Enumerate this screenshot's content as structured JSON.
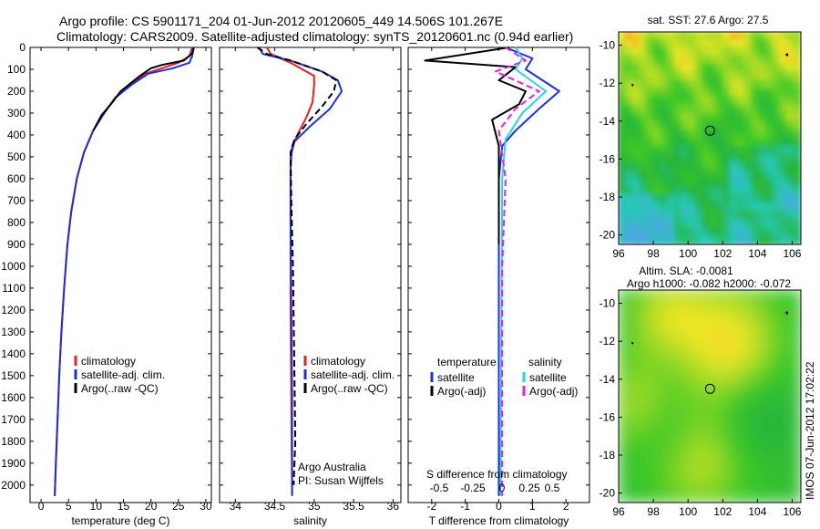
{
  "header": {
    "line1": "Argo profile: CS 5901171_204 01-Jun-2012 20120605_449 14.506S 101.267E",
    "line2": "Climatology: CARS2009. Satellite-adjusted climatology: synTS_20120601.nc (0.94d earlier)"
  },
  "sidebar_text": "IMOS 07-Jun-2012 17:02:22",
  "colors": {
    "climatology": "#e8201a",
    "satellite": "#1b2fe0",
    "argo": "#000000",
    "satellite_s": "#22d6e8",
    "argo_s": "#e61ee6"
  },
  "chart_data": [
    {
      "type": "line",
      "name": "temperature",
      "xlabel": "temperature (deg C)",
      "xlim": [
        -2,
        31
      ],
      "xticks": [
        0,
        5,
        10,
        15,
        20,
        25,
        30
      ],
      "ylim": [
        0,
        2080
      ],
      "yticks": [
        0,
        100,
        200,
        300,
        400,
        500,
        600,
        700,
        800,
        900,
        1000,
        1100,
        1200,
        1300,
        1400,
        1500,
        1600,
        1700,
        1800,
        1900,
        2000
      ],
      "legend": {
        "location": "lower-middle",
        "entries": [
          "climatology",
          "satellite-adj. clim.",
          "Argo(..raw -QC)"
        ]
      },
      "series": [
        {
          "name": "climatology",
          "color": "#e8201a",
          "style": "solid",
          "points": [
            [
              27.5,
              0
            ],
            [
              27,
              40
            ],
            [
              25,
              70
            ],
            [
              22,
              95
            ],
            [
              19,
              120
            ],
            [
              16,
              170
            ],
            [
              13.5,
              230
            ],
            [
              11.5,
              300
            ],
            [
              9.5,
              380
            ],
            [
              7.8,
              480
            ],
            [
              6.5,
              600
            ],
            [
              5.5,
              750
            ],
            [
              4.8,
              900
            ],
            [
              4.2,
              1100
            ],
            [
              3.7,
              1300
            ],
            [
              3.3,
              1500
            ],
            [
              3,
              1700
            ],
            [
              2.7,
              1900
            ],
            [
              2.5,
              2050
            ]
          ]
        },
        {
          "name": "satellite-adj. clim.",
          "color": "#1b2fe0",
          "style": "solid",
          "points": [
            [
              27.7,
              0
            ],
            [
              27.5,
              40
            ],
            [
              27,
              70
            ],
            [
              24,
              95
            ],
            [
              19.5,
              120
            ],
            [
              16.5,
              170
            ],
            [
              13.5,
              230
            ],
            [
              11.5,
              300
            ],
            [
              9.5,
              380
            ],
            [
              7.8,
              480
            ],
            [
              6.5,
              600
            ],
            [
              5.5,
              750
            ],
            [
              4.8,
              900
            ],
            [
              4.2,
              1100
            ],
            [
              3.7,
              1300
            ],
            [
              3.3,
              1500
            ],
            [
              3,
              1700
            ],
            [
              2.7,
              1900
            ],
            [
              2.5,
              2050
            ]
          ]
        },
        {
          "name": "Argo(..raw -QC)",
          "color": "#000000",
          "style": "solid",
          "points": [
            [
              27.8,
              0
            ],
            [
              27.6,
              25
            ],
            [
              26,
              60
            ],
            [
              22,
              80
            ],
            [
              20,
              95
            ],
            [
              18,
              130
            ],
            [
              16,
              170
            ],
            [
              14.5,
              200
            ],
            [
              13,
              250
            ],
            [
              11,
              310
            ],
            [
              9.5,
              380
            ]
          ]
        }
      ]
    },
    {
      "type": "line",
      "name": "salinity",
      "xlabel": "salinity",
      "xlim": [
        33.8,
        36.1
      ],
      "xticks": [
        34,
        34.5,
        35,
        35.5,
        36
      ],
      "ylim": [
        0,
        2080
      ],
      "legend": {
        "location": "lower-middle",
        "entries": [
          "climatology",
          "satellite-adj. clim.",
          "Argo(..raw -QC)"
        ]
      },
      "annotations": [
        "Argo Australia",
        "PI: Susan Wijffels"
      ],
      "series": [
        {
          "name": "climatology",
          "color": "#e8201a",
          "style": "solid",
          "points": [
            [
              34.4,
              0
            ],
            [
              34.45,
              30
            ],
            [
              34.7,
              70
            ],
            [
              35,
              130
            ],
            [
              35,
              170
            ],
            [
              34.98,
              250
            ],
            [
              34.9,
              320
            ],
            [
              34.8,
              390
            ],
            [
              34.72,
              450
            ],
            [
              34.7,
              560
            ],
            [
              34.7,
              800
            ],
            [
              34.7,
              1200
            ],
            [
              34.71,
              1600
            ],
            [
              34.72,
              2050
            ]
          ]
        },
        {
          "name": "satellite-adj. clim.",
          "color": "#1b2fe0",
          "style": "solid",
          "points": [
            [
              34.3,
              0
            ],
            [
              34.35,
              30
            ],
            [
              34.7,
              60
            ],
            [
              35.1,
              110
            ],
            [
              35.3,
              150
            ],
            [
              35.35,
              200
            ],
            [
              35.2,
              280
            ],
            [
              34.95,
              360
            ],
            [
              34.75,
              430
            ],
            [
              34.7,
              500
            ],
            [
              34.7,
              800
            ],
            [
              34.71,
              1200
            ],
            [
              34.72,
              1600
            ],
            [
              34.72,
              2050
            ]
          ]
        },
        {
          "name": "Argo(..raw -QC)",
          "color": "#000000",
          "style": "dashed",
          "points": [
            [
              34.28,
              0
            ],
            [
              34.4,
              30
            ],
            [
              34.7,
              60
            ],
            [
              35.1,
              110
            ],
            [
              35.28,
              150
            ],
            [
              35.25,
              200
            ],
            [
              35.1,
              270
            ],
            [
              34.9,
              350
            ],
            [
              34.75,
              420
            ],
            [
              34.7,
              480
            ],
            [
              34.71,
              700
            ],
            [
              34.73,
              1000
            ],
            [
              34.75,
              1500
            ],
            [
              34.76,
              1800
            ],
            [
              34.74,
              2000
            ]
          ]
        }
      ]
    },
    {
      "type": "line",
      "name": "differences",
      "xlabel": "T difference from climatology",
      "xlim": [
        -2.7,
        2.7
      ],
      "xticks": [
        -2,
        -1,
        0,
        1,
        2
      ],
      "top_axis_label": "S difference from climatology",
      "top_xticks": [
        "-0.5",
        "-0.25",
        "0",
        "0.25",
        "0.5"
      ],
      "ylim": [
        0,
        2080
      ],
      "legend": {
        "location": "lower-middle",
        "columns": [
          {
            "title": "temperature",
            "entries": [
              "satellite",
              "Argo(-adj)"
            ]
          },
          {
            "title": "salinity",
            "entries": [
              "satellite",
              "Argo(-adj)"
            ]
          }
        ]
      },
      "series": [
        {
          "name": "T satellite",
          "color": "#1b2fe0",
          "style": "solid",
          "points": [
            [
              0.2,
              0
            ],
            [
              1,
              50
            ],
            [
              0.8,
              100
            ],
            [
              1.8,
              200
            ],
            [
              1.2,
              280
            ],
            [
              0.5,
              380
            ],
            [
              0.1,
              450
            ],
            [
              0,
              600
            ],
            [
              0,
              2050
            ]
          ]
        },
        {
          "name": "T Argo(-adj)",
          "color": "#000000",
          "style": "solid",
          "points": [
            [
              0.3,
              0
            ],
            [
              -2.2,
              60
            ],
            [
              0.5,
              90
            ],
            [
              0,
              150
            ],
            [
              0.8,
              200
            ],
            [
              0.6,
              260
            ],
            [
              -0.2,
              330
            ],
            [
              0,
              450
            ],
            [
              0,
              900
            ]
          ]
        },
        {
          "name": "S satellite",
          "color": "#22d6e8",
          "style": "solid",
          "points": [
            [
              0.5,
              0
            ],
            [
              0.7,
              50
            ],
            [
              0.5,
              100
            ],
            [
              1.4,
              200
            ],
            [
              0.7,
              300
            ],
            [
              0.2,
              420
            ],
            [
              0.1,
              600
            ],
            [
              0.05,
              2050
            ]
          ]
        },
        {
          "name": "S Argo(-adj)",
          "color": "#e61ee6",
          "style": "dashed",
          "points": [
            [
              0.2,
              0
            ],
            [
              0.8,
              60
            ],
            [
              -0.1,
              110
            ],
            [
              1.2,
              200
            ],
            [
              0.5,
              280
            ],
            [
              0,
              380
            ],
            [
              0.2,
              600
            ],
            [
              0.1,
              1000
            ],
            [
              0.1,
              1500
            ],
            [
              0.1,
              2050
            ]
          ]
        }
      ]
    },
    {
      "type": "heatmap",
      "name": "sst-map",
      "title": "sat. SST: 27.6 Argo: 27.5",
      "xlim": [
        96,
        106.5
      ],
      "xticks": [
        96,
        98,
        100,
        102,
        104,
        106
      ],
      "ylim": [
        -20.5,
        -9.3
      ],
      "yticks": [
        -10,
        -12,
        -14,
        -16,
        -18,
        -20
      ],
      "profile_location": [
        101.267,
        -14.506
      ]
    },
    {
      "type": "heatmap",
      "name": "sla-map",
      "title": "Altim. SLA: -0.0081",
      "subtitle": "Argo h1000: -0.082 h2000: -0.072",
      "xlim": [
        96,
        106.5
      ],
      "xticks": [
        96,
        98,
        100,
        102,
        104,
        106
      ],
      "ylim": [
        -20.5,
        -9.3
      ],
      "yticks": [
        -10,
        -12,
        -14,
        -16,
        -18,
        -20
      ],
      "profile_location": [
        101.267,
        -14.506
      ]
    }
  ]
}
